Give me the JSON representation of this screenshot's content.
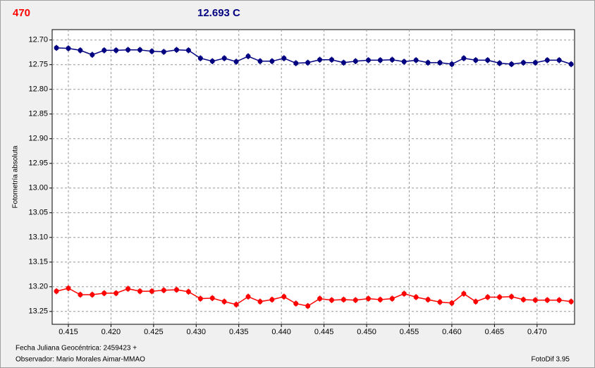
{
  "chart_data": {
    "type": "scatter",
    "title": "470",
    "subtitle": "12.693 C",
    "y_label": "Fotometría absoluta",
    "x_label": "Fecha Juliana Geocéntrica: 2459423 +",
    "observer": "Observador: Mario Morales Aimar-MMAO",
    "software": "FotoDif 3.95",
    "y_inverted": true,
    "grid": true,
    "xlim": [
      0.4131,
      0.4744
    ],
    "ylim": [
      12.679,
      13.276
    ],
    "xticks": [
      0.415,
      {
        "value": 0.42,
        "label": "0.420"
      },
      0.425,
      {
        "value": 0.43,
        "label": "0.430"
      },
      0.435,
      {
        "value": 0.44,
        "label": "0.440"
      },
      0.445,
      {
        "value": 0.45,
        "label": "0.450"
      },
      0.455,
      {
        "value": 0.46,
        "label": "0.460"
      },
      0.465,
      {
        "value": 0.47,
        "label": "0.470"
      }
    ],
    "yticks": [
      {
        "value": 12.7,
        "label": "12.70"
      },
      12.75,
      {
        "value": 12.8,
        "label": "12.80"
      },
      12.85,
      {
        "value": 12.9,
        "label": "12.90"
      },
      12.95,
      {
        "value": 13.0,
        "label": "13.00"
      },
      13.05,
      {
        "value": 13.1,
        "label": "13.10"
      },
      13.15,
      {
        "value": 13.2,
        "label": "13.20"
      },
      13.25
    ],
    "x": [
      0.4136,
      0.415,
      0.4164,
      0.4178,
      0.4192,
      0.4206,
      0.422,
      0.4234,
      0.4248,
      0.4262,
      0.4277,
      0.4291,
      0.4305,
      0.4319,
      0.4333,
      0.4347,
      0.4361,
      0.4375,
      0.4389,
      0.4403,
      0.4417,
      0.4431,
      0.4445,
      0.4459,
      0.4473,
      0.4487,
      0.4502,
      0.4516,
      0.453,
      0.4544,
      0.4558,
      0.4572,
      0.4586,
      0.46,
      0.4614,
      0.4628,
      0.4642,
      0.4656,
      0.467,
      0.4684,
      0.4698,
      0.4712,
      0.4726,
      0.474
    ],
    "series": [
      {
        "color": "#000080",
        "error": 0.006,
        "values": [
          12.716,
          12.717,
          12.721,
          12.73,
          12.721,
          12.721,
          12.72,
          12.72,
          12.723,
          12.724,
          12.72,
          12.721,
          12.737,
          12.743,
          12.737,
          12.744,
          12.733,
          12.743,
          12.743,
          12.737,
          12.747,
          12.746,
          12.74,
          12.74,
          12.746,
          12.743,
          12.741,
          12.741,
          12.74,
          12.744,
          12.741,
          12.746,
          12.746,
          12.749,
          12.737,
          12.741,
          12.741,
          12.747,
          12.749,
          12.746,
          12.746,
          12.741,
          12.741,
          12.749
        ]
      },
      {
        "color": "#ff0000",
        "error": 0.006,
        "values": [
          13.209,
          13.203,
          13.216,
          13.216,
          13.213,
          13.213,
          13.204,
          13.209,
          13.209,
          13.207,
          13.206,
          13.21,
          13.224,
          13.223,
          13.23,
          13.236,
          13.22,
          13.23,
          13.226,
          13.22,
          13.234,
          13.239,
          13.224,
          13.227,
          13.226,
          13.227,
          13.224,
          13.226,
          13.224,
          13.214,
          13.221,
          13.226,
          13.231,
          13.233,
          13.214,
          13.23,
          13.221,
          13.221,
          13.22,
          13.226,
          13.227,
          13.227,
          13.227,
          13.23
        ]
      }
    ]
  }
}
